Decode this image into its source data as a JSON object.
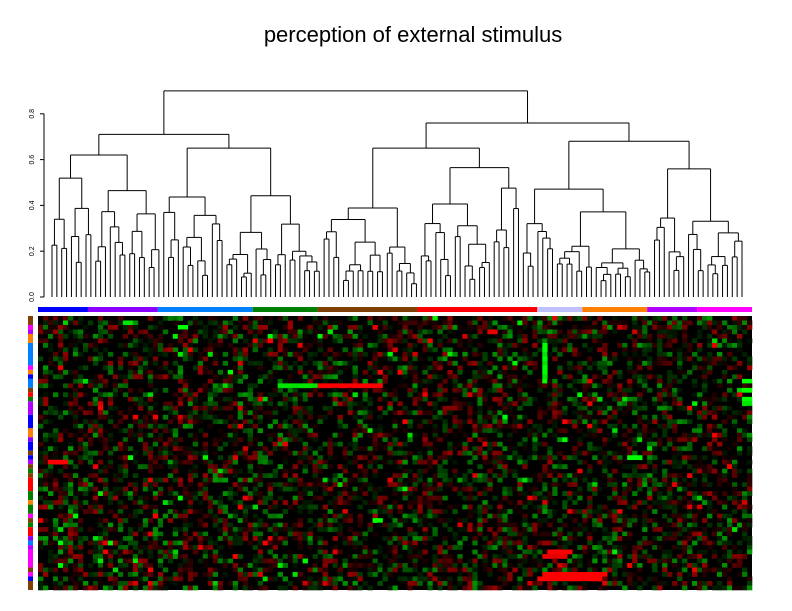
{
  "chart_data": {
    "type": "heatmap",
    "title": "perception of external stimulus",
    "dendrogram": {
      "axis_ticks": [
        "0.0",
        "0.2",
        "0.4",
        "0.6",
        "0.8"
      ],
      "ylim": [
        0,
        0.9
      ],
      "root_height": 0.9,
      "top_structure": {
        "h": 0.9,
        "children": [
          {
            "h": 0.71,
            "children": [
              {
                "h": 0.62,
                "leaves": 23
              },
              {
                "h": 0.65,
                "leaves": 33
              }
            ]
          },
          {
            "h": 0.76,
            "children": [
              {
                "h": 0.65,
                "leaves": 41
              },
              {
                "h": 0.68,
                "leaves": 46
              }
            ]
          }
        ]
      },
      "seed": 17
    },
    "n_columns": 143,
    "n_rows": 61,
    "column_groups": [
      {
        "color": "#0000ff",
        "count": 10
      },
      {
        "color": "#8a00ff",
        "count": 14
      },
      {
        "color": "#0080ff",
        "count": 19
      },
      {
        "color": "#008000",
        "count": 13
      },
      {
        "color": "#804000",
        "count": 20
      },
      {
        "color": "#ff0000",
        "count": 24
      },
      {
        "color": "#c0c0ff",
        "count": 9
      },
      {
        "color": "#ff8000",
        "count": 13
      },
      {
        "color": "#b000ff",
        "count": 10
      },
      {
        "color": "#ff00ff",
        "count": 11
      }
    ],
    "row_groups": [
      [
        "#804000",
        2
      ],
      [
        "#ff00ff",
        1
      ],
      [
        "#b000ff",
        1
      ],
      [
        "#ff8000",
        2
      ],
      [
        "#0080ff",
        5
      ],
      [
        "#ff00ff",
        1
      ],
      [
        "#ff8000",
        1
      ],
      [
        "#0000ff",
        1
      ],
      [
        "#0080ff",
        2
      ],
      [
        "#804000",
        1
      ],
      [
        "#ff0000",
        1
      ],
      [
        "#008000",
        1
      ],
      [
        "#b000ff",
        3
      ],
      [
        "#0000ff",
        3
      ],
      [
        "#ff8000",
        2
      ],
      [
        "#8a00ff",
        1
      ],
      [
        "#0000ff",
        2
      ],
      [
        "#804000",
        1
      ],
      [
        "#0000ff",
        1
      ],
      [
        "#b000ff",
        1
      ],
      [
        "#804000",
        1
      ],
      [
        "#008000",
        1
      ],
      [
        "#804000",
        1
      ],
      [
        "#ff0000",
        3
      ],
      [
        "#008000",
        2
      ],
      [
        "#ff8000",
        1
      ],
      [
        "#008000",
        2
      ],
      [
        "#ff00ff",
        1
      ],
      [
        "#804000",
        1
      ],
      [
        "#008000",
        1
      ],
      [
        "#ff0000",
        2
      ],
      [
        "#8a00ff",
        1
      ],
      [
        "#0080ff",
        1
      ],
      [
        "#b000ff",
        1
      ],
      [
        "#ff00ff",
        4
      ],
      [
        "#804000",
        1
      ],
      [
        "#ff00ff",
        1
      ],
      [
        "#0000ff",
        1
      ],
      [
        "#804000",
        2
      ]
    ],
    "color_scale": {
      "negative": "#00ff00",
      "zero": "#000000",
      "positive": "#ff0000",
      "range": [
        -1,
        1
      ]
    },
    "value_seed": 5,
    "highlights": [
      {
        "row": 15,
        "cols": [
          48,
          55
        ],
        "value": -0.9
      },
      {
        "row": 15,
        "cols": [
          56,
          68
        ],
        "value": 1.0
      },
      {
        "row": 32,
        "cols": [
          2,
          5
        ],
        "value": 1.0
      },
      {
        "row": 57,
        "cols": [
          101,
          113
        ],
        "value": 1.0
      },
      {
        "row": 58,
        "cols": [
          100,
          112
        ],
        "value": 1.0
      },
      {
        "row": 52,
        "cols": [
          102,
          106
        ],
        "value": 1.0
      },
      {
        "row": 53,
        "cols": [
          101,
          105
        ],
        "value": 0.9
      },
      {
        "row": 6,
        "cols": [
          101,
          101
        ],
        "value": -1.0
      },
      {
        "row": 7,
        "cols": [
          101,
          101
        ],
        "value": -1.0
      },
      {
        "row": 8,
        "cols": [
          101,
          101
        ],
        "value": -0.9
      },
      {
        "row": 9,
        "cols": [
          101,
          101
        ],
        "value": -1.0
      },
      {
        "row": 10,
        "cols": [
          101,
          101
        ],
        "value": -0.9
      },
      {
        "row": 11,
        "cols": [
          101,
          101
        ],
        "value": -1.0
      },
      {
        "row": 12,
        "cols": [
          101,
          101
        ],
        "value": -1.0
      },
      {
        "row": 13,
        "cols": [
          101,
          101
        ],
        "value": -0.9
      },
      {
        "row": 14,
        "cols": [
          101,
          101
        ],
        "value": -1.0
      },
      {
        "row": 31,
        "cols": [
          118,
          120
        ],
        "value": -1.0
      },
      {
        "row": 14,
        "cols": [
          141,
          142
        ],
        "value": -1.0
      },
      {
        "row": 16,
        "cols": [
          141,
          142
        ],
        "value": -1.0
      },
      {
        "row": 18,
        "cols": [
          141,
          142
        ],
        "value": -1.0
      },
      {
        "row": 19,
        "cols": [
          141,
          142
        ],
        "value": -0.9
      },
      {
        "row": 45,
        "cols": [
          67,
          68
        ],
        "value": -1.0
      },
      {
        "row": 1,
        "cols": [
          17,
          18
        ],
        "value": -0.9
      },
      {
        "row": 2,
        "cols": [
          28,
          29
        ],
        "value": -1.0
      }
    ]
  }
}
